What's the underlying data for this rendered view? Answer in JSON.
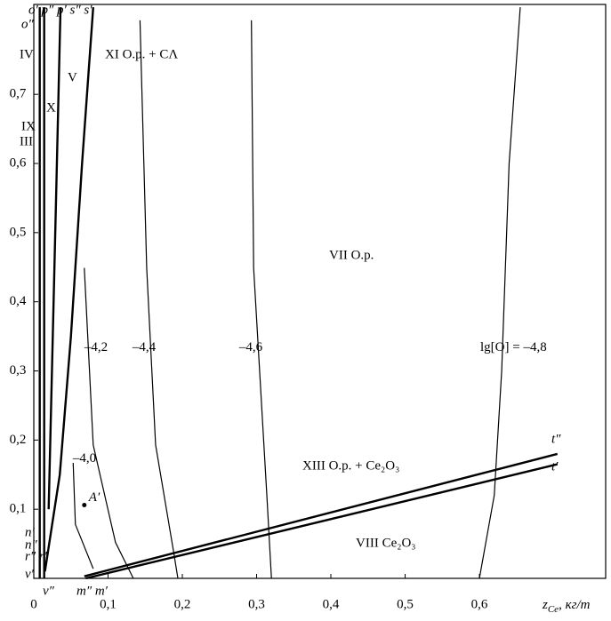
{
  "chart_data": {
    "type": "line",
    "xlabel": "z",
    "xlabel_sub": "Ce",
    "xlabel_unit": ", кг/т",
    "xlim": [
      0,
      0.77
    ],
    "ylim": [
      0,
      0.83
    ],
    "xticks": [
      {
        "value": 0,
        "label": "0"
      },
      {
        "value": 0.1,
        "label": "0,1"
      },
      {
        "value": 0.2,
        "label": "0,2"
      },
      {
        "value": 0.3,
        "label": "0,3"
      },
      {
        "value": 0.4,
        "label": "0,4"
      },
      {
        "value": 0.5,
        "label": "0,5"
      },
      {
        "value": 0.6,
        "label": "0,6"
      }
    ],
    "yticks": [
      {
        "value": 0.1,
        "label": "0,1"
      },
      {
        "value": 0.2,
        "label": "0,2"
      },
      {
        "value": 0.3,
        "label": "0,3"
      },
      {
        "value": 0.4,
        "label": "0,4"
      },
      {
        "value": 0.5,
        "label": "0,5"
      },
      {
        "value": 0.6,
        "label": "0,6"
      },
      {
        "value": 0.7,
        "label": "0,7"
      }
    ],
    "color": "#000000",
    "series": [
      {
        "name": "–4,8",
        "x": [
          0.655,
          0.64,
          0.63,
          0.62,
          0.6
        ],
        "values": [
          0.826,
          0.6,
          0.3,
          0.12,
          0
        ]
      },
      {
        "name": "–4,6",
        "x": [
          0.293,
          0.296,
          0.314,
          0.32
        ],
        "values": [
          0.807,
          0.449,
          0.116,
          0
        ]
      },
      {
        "name": "–4,4",
        "x": [
          0.143,
          0.152,
          0.164,
          0.188,
          0.194
        ],
        "values": [
          0.807,
          0.449,
          0.193,
          0.04,
          0
        ]
      },
      {
        "name": "–4,2",
        "x": [
          0.068,
          0.08,
          0.11,
          0.134
        ],
        "values": [
          0.449,
          0.193,
          0.052,
          0
        ]
      },
      {
        "name": "–4,0",
        "x": [
          0.053,
          0.056,
          0.08
        ],
        "values": [
          0.167,
          0.078,
          0.014
        ]
      },
      {
        "x": [
          0.08,
          0.065,
          0.05,
          0.035,
          0.015
        ],
        "values": [
          0.826,
          0.6,
          0.35,
          0.15,
          0.01
        ],
        "thick": true
      },
      {
        "x": [
          0.036,
          0.03,
          0.02
        ],
        "values": [
          0.826,
          0.55,
          0.1
        ],
        "thick": true
      },
      {
        "x": [
          0.008,
          0.008
        ],
        "values": [
          0,
          0.826
        ],
        "thick": true
      },
      {
        "x": [
          0.014,
          0.014
        ],
        "values": [
          0,
          0.826
        ],
        "thick": true
      },
      {
        "x": [
          0.07,
          0.705
        ],
        "values": [
          0,
          0.165
        ],
        "thick": true
      },
      {
        "x": [
          0.068,
          0.705
        ],
        "values": [
          0.003,
          0.18
        ],
        "thick": true
      }
    ],
    "series_label_prefix": "lg[O] = ",
    "points": [
      {
        "label": "A′",
        "x": 0.068,
        "y": 0.106
      }
    ],
    "annotations": [
      "o′ p″ p′ s″ s′",
      "o″",
      "IV",
      "V",
      "XI  O.p. + CΛ",
      "X",
      "IX",
      "III",
      "VII  O.p.",
      "XIII  O.p. + Ce₂O₃",
      "VIII  Ce₂O₃",
      "t″",
      "t′",
      "n′",
      "n″",
      "r″ r′",
      "v′",
      "v″",
      "m″ m′"
    ]
  }
}
